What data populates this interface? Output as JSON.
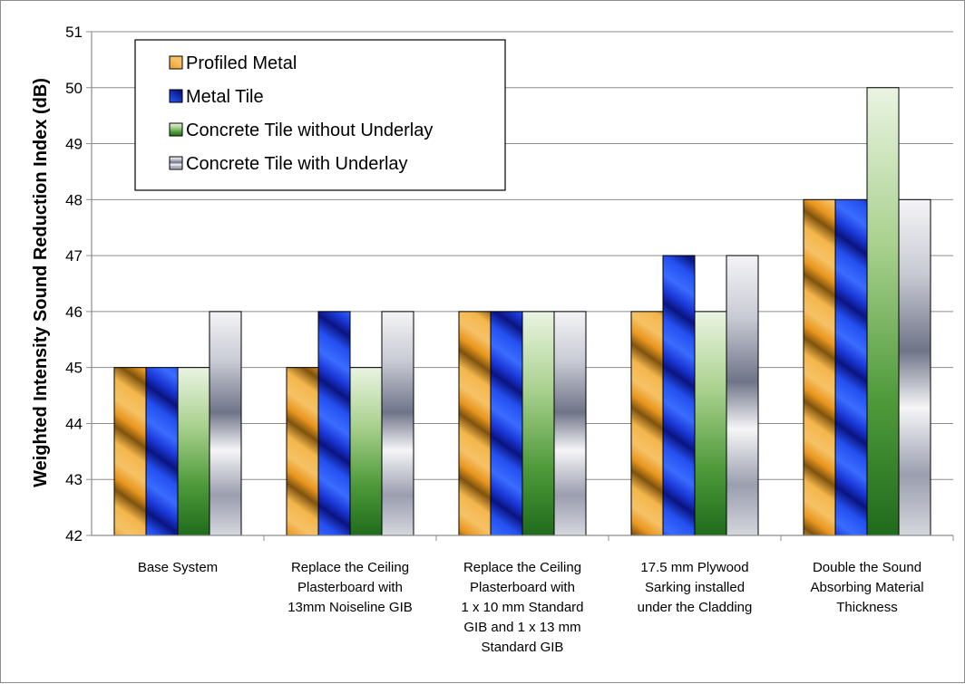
{
  "chart_data": {
    "type": "bar",
    "title": "",
    "xlabel": "",
    "ylabel": "Weighted Intensity Sound Reduction Index (dB)",
    "ylim": [
      42,
      51
    ],
    "yticks": [
      42,
      43,
      44,
      45,
      46,
      47,
      48,
      49,
      50,
      51
    ],
    "grid": true,
    "legend_position": "top-left",
    "categories": [
      [
        "Base System"
      ],
      [
        "Replace the Ceiling",
        "Plasterboard with",
        "13mm Noiseline GIB"
      ],
      [
        "Replace the Ceiling",
        "Plasterboard with",
        "1 x 10 mm Standard",
        "GIB and 1 x 13 mm",
        "Standard GIB"
      ],
      [
        "17.5 mm Plywood",
        "Sarking installed",
        "under the Cladding"
      ],
      [
        "Double the Sound",
        "Absorbing Material",
        "Thickness"
      ]
    ],
    "series": [
      {
        "name": "Profiled Metal",
        "values": [
          45,
          45,
          46,
          46,
          48
        ],
        "color": "#e8a23a"
      },
      {
        "name": "Metal Tile",
        "values": [
          45,
          46,
          46,
          47,
          48
        ],
        "color": "#1f3fd6"
      },
      {
        "name": "Concrete Tile without Underlay",
        "values": [
          45,
          45,
          46,
          46,
          50
        ],
        "color": "#58a445"
      },
      {
        "name": "Concrete Tile with Underlay",
        "values": [
          46,
          46,
          46,
          47,
          48
        ],
        "color": "#b8bcc8"
      }
    ]
  }
}
